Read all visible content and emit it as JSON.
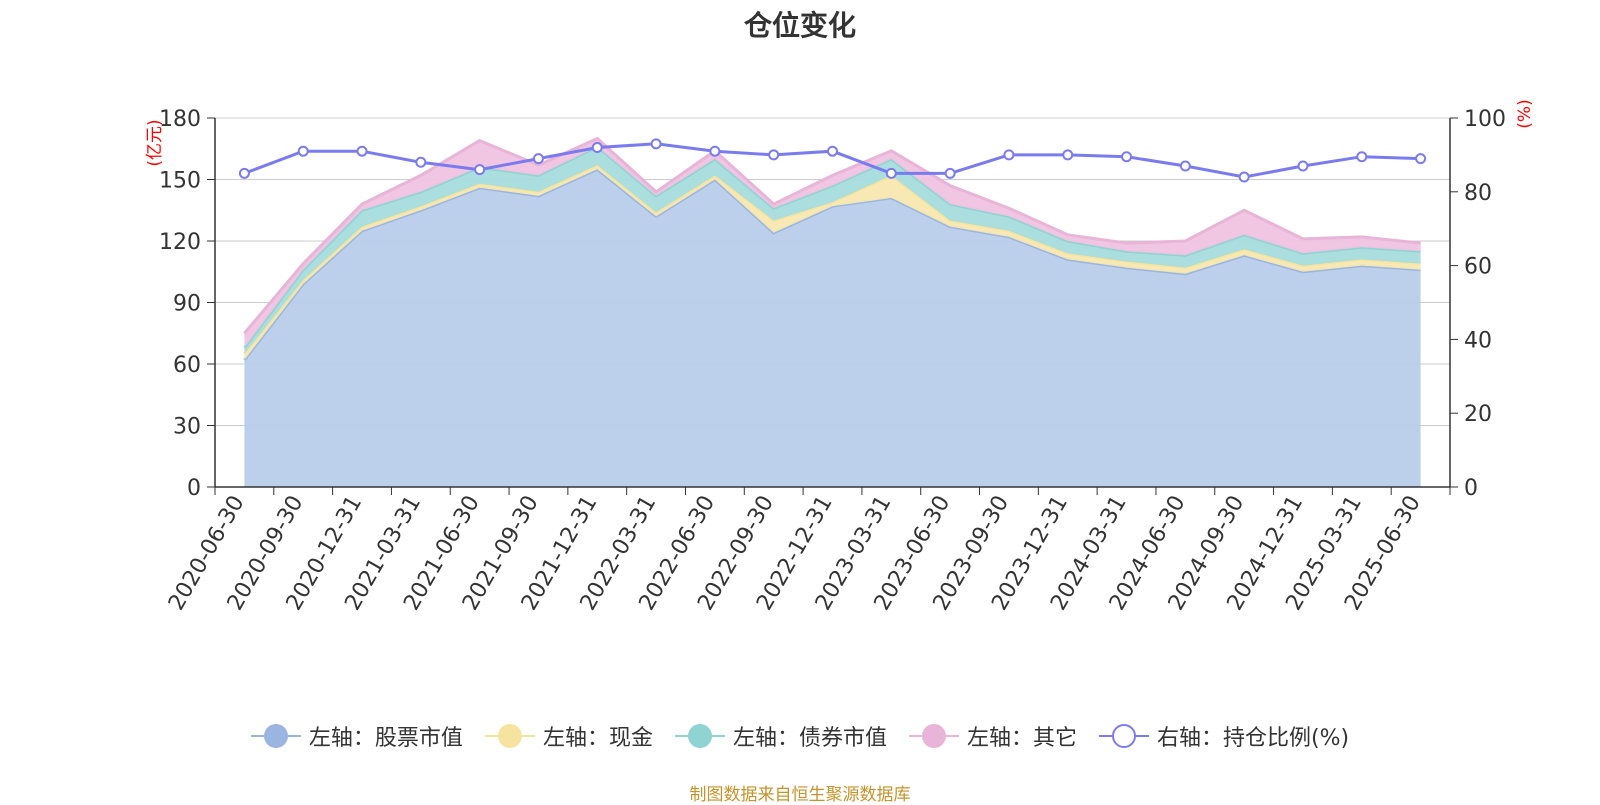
{
  "title": "仓位变化",
  "source_note": "制图数据来自恒生聚源数据库",
  "chart_data": {
    "type": "area",
    "stacked": true,
    "title": "仓位变化",
    "categories": [
      "2020-06-30",
      "2020-09-30",
      "2020-12-31",
      "2021-03-31",
      "2021-06-30",
      "2021-09-30",
      "2021-12-31",
      "2022-03-31",
      "2022-06-30",
      "2022-09-30",
      "2022-12-31",
      "2023-03-31",
      "2023-06-30",
      "2023-09-30",
      "2023-12-31",
      "2024-03-31",
      "2024-06-30",
      "2024-09-30",
      "2024-12-31",
      "2025-03-31",
      "2025-06-30"
    ],
    "left_axis": {
      "label": "(亿元)",
      "ylim": [
        0,
        180
      ],
      "ticks": [
        0,
        30,
        60,
        90,
        120,
        150,
        180
      ]
    },
    "right_axis": {
      "label": "(%)",
      "ylim": [
        0,
        100
      ],
      "ticks": [
        0,
        20,
        40,
        60,
        80,
        100
      ]
    },
    "grid": true,
    "legend_position": "bottom",
    "series": [
      {
        "name": "左轴：股票市值",
        "axis": "left",
        "color": "#9ab6e0",
        "fill": "#b8cdeb",
        "values": [
          62,
          99,
          125,
          135,
          146,
          142,
          155,
          132,
          150,
          124,
          137,
          141,
          127,
          122,
          111,
          107,
          104,
          113,
          105,
          108,
          106
        ]
      },
      {
        "name": "左轴：现金",
        "axis": "left",
        "color": "#f7e3a0",
        "fill": "#f8e8b0",
        "values": [
          3,
          2,
          2,
          2,
          2,
          2,
          2,
          2,
          2,
          6,
          2,
          11,
          3,
          3,
          3,
          3,
          3,
          3,
          3,
          3,
          3
        ]
      },
      {
        "name": "左轴：债券市值",
        "axis": "left",
        "color": "#8fd3d2",
        "fill": "#a6dcdc",
        "values": [
          3,
          5,
          8,
          7,
          8,
          8,
          9,
          8,
          8,
          6,
          8,
          8,
          8,
          7,
          6,
          5,
          6,
          7,
          6,
          6,
          6
        ]
      },
      {
        "name": "左轴：其它",
        "axis": "left",
        "color": "#e8b4d8",
        "fill": "#efc3e1",
        "values": [
          7,
          3,
          3,
          8,
          13,
          5,
          4,
          2,
          4,
          2,
          5,
          4,
          9,
          4,
          3,
          4,
          7,
          12,
          7,
          5,
          4
        ]
      },
      {
        "name": "右轴：持仓比例(%)",
        "axis": "right",
        "color": "#7b7bf0",
        "type": "line",
        "values": [
          85,
          91,
          91,
          88,
          86,
          89,
          92,
          93,
          91,
          90,
          91,
          85,
          85,
          90,
          90,
          89.5,
          87,
          84,
          87,
          89.5,
          89
        ]
      }
    ]
  }
}
